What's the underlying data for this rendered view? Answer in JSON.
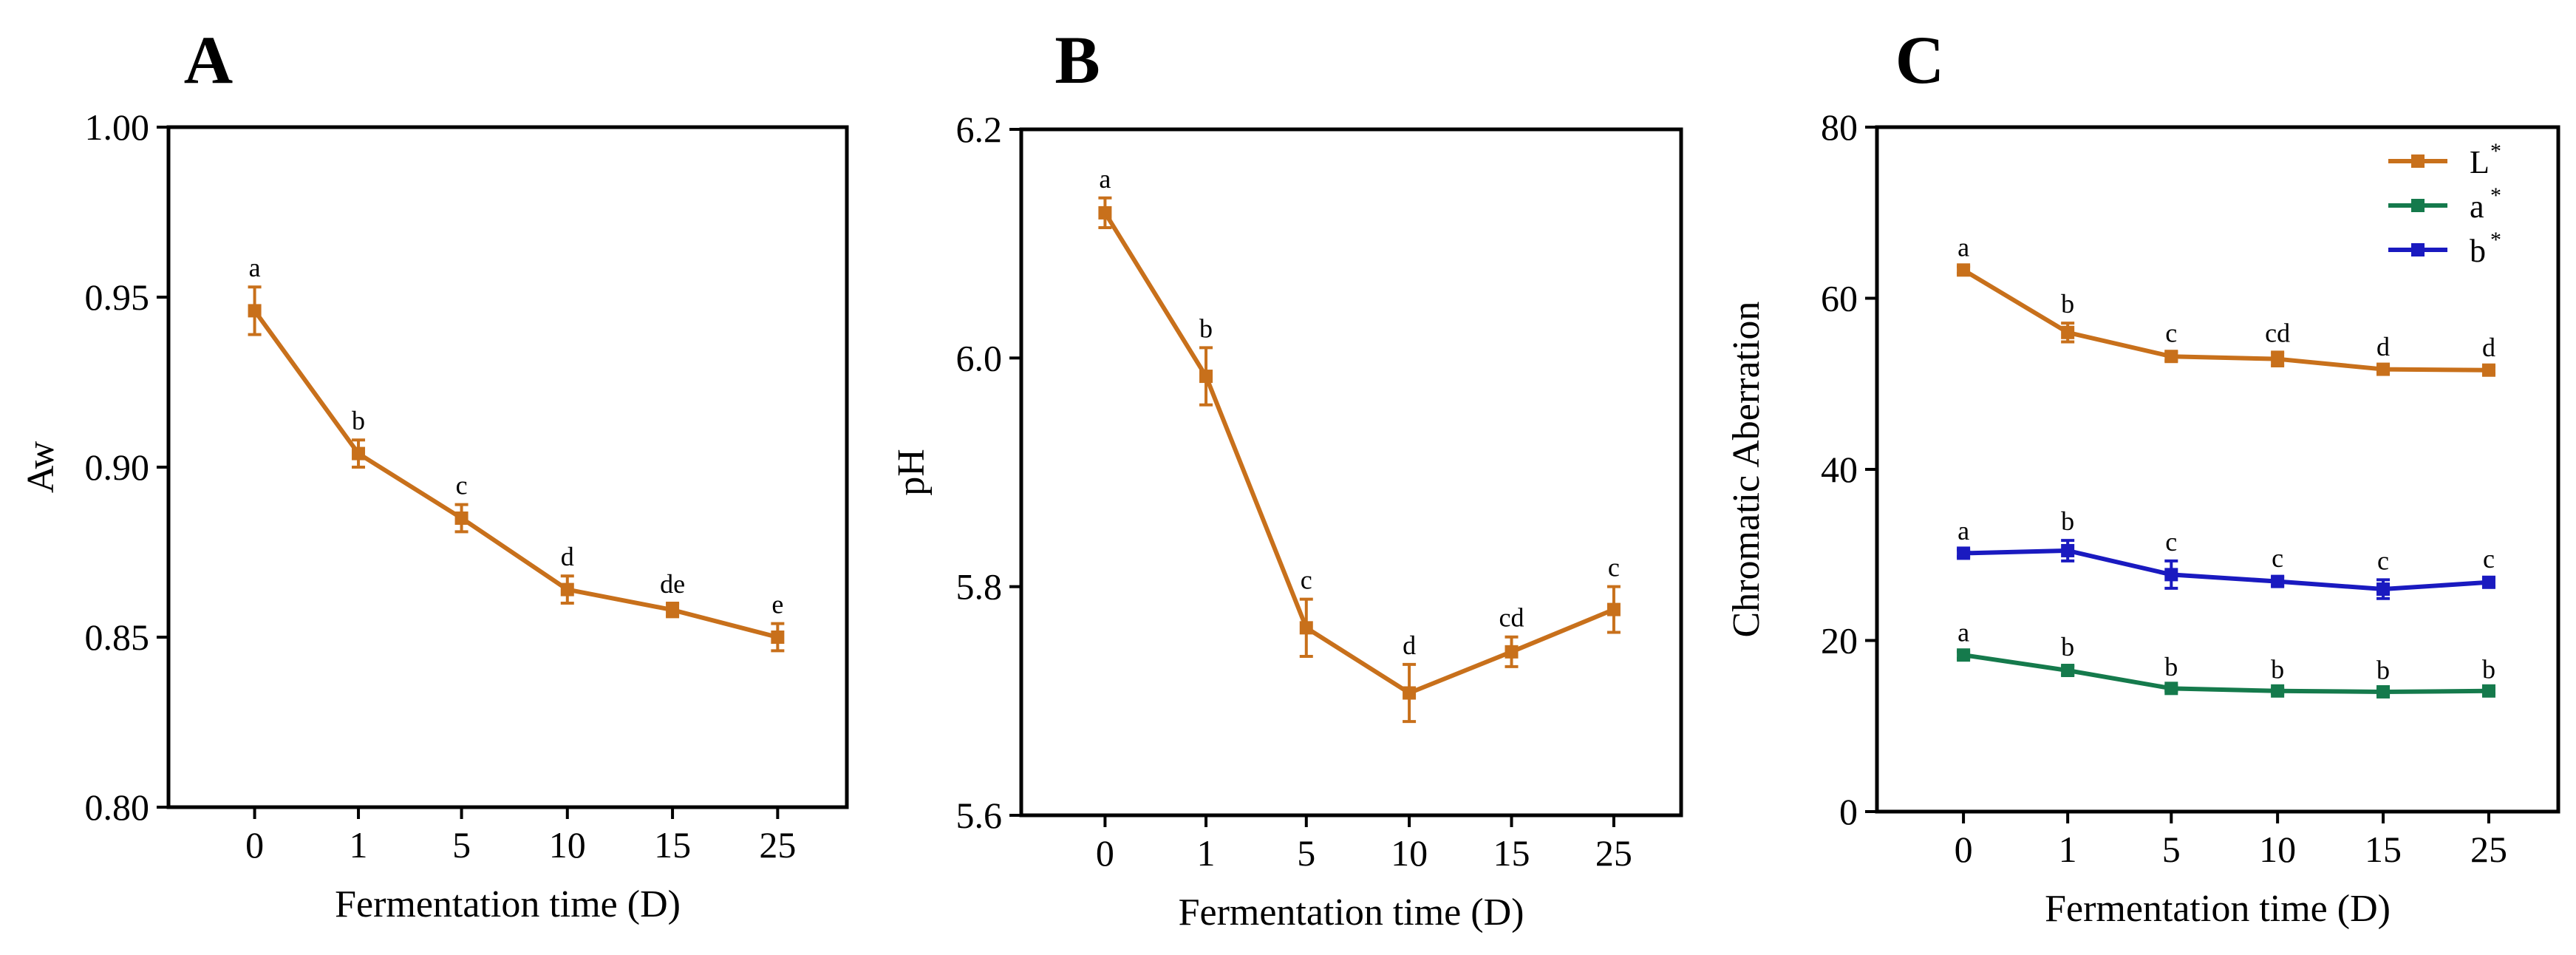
{
  "panels": [
    "A",
    "B",
    "C"
  ],
  "colors": {
    "L": "#c8701b",
    "a": "#157a4c",
    "b": "#1a1ac0",
    "orange": "#c8701b"
  },
  "chart_data": [
    {
      "type": "line",
      "panel": "A",
      "categories": [
        "0",
        "1",
        "5",
        "10",
        "15",
        "25"
      ],
      "xlabel": "Fermentation time (D)",
      "ylabel": "Aw",
      "ylim": [
        0.8,
        1.0
      ],
      "yticks": [
        0.8,
        0.85,
        0.9,
        0.95,
        1.0
      ],
      "ytick_labels": [
        "0.80",
        "0.85",
        "0.90",
        "0.95",
        "1.00"
      ],
      "series": [
        {
          "name": "Aw",
          "color": "#c8701b",
          "values": [
            0.946,
            0.904,
            0.885,
            0.864,
            0.858,
            0.85
          ],
          "errors": [
            0.007,
            0.004,
            0.004,
            0.004,
            0.002,
            0.004
          ],
          "labels": [
            "a",
            "b",
            "c",
            "d",
            "de",
            "e"
          ]
        }
      ]
    },
    {
      "type": "line",
      "panel": "B",
      "categories": [
        "0",
        "1",
        "5",
        "10",
        "15",
        "25"
      ],
      "xlabel": "Fermentation time (D)",
      "ylabel": "pH",
      "ylim": [
        5.6,
        6.2
      ],
      "yticks": [
        5.6,
        5.8,
        6.0,
        6.2
      ],
      "ytick_labels": [
        "5.6",
        "5.8",
        "6.0",
        "6.2"
      ],
      "series": [
        {
          "name": "pH",
          "color": "#c8701b",
          "values": [
            6.127,
            5.984,
            5.764,
            5.707,
            5.743,
            5.78
          ],
          "errors": [
            0.013,
            0.025,
            0.025,
            0.025,
            0.013,
            0.02
          ],
          "labels": [
            "a",
            "b",
            "c",
            "d",
            "cd",
            "c"
          ]
        }
      ]
    },
    {
      "type": "line",
      "panel": "C",
      "categories": [
        "0",
        "1",
        "5",
        "10",
        "15",
        "25"
      ],
      "xlabel": "Fermentation time (D)",
      "ylabel": "Chromatic Aberration",
      "ylim": [
        0,
        80
      ],
      "yticks": [
        0,
        20,
        40,
        60,
        80
      ],
      "ytick_labels": [
        "0",
        "20",
        "40",
        "60",
        "80"
      ],
      "legend": "top-right",
      "series": [
        {
          "name": "L",
          "sup": "*",
          "color": "#c8701b",
          "values": [
            63.3,
            56.0,
            53.2,
            52.9,
            51.7,
            51.6
          ],
          "errors": [
            0.4,
            1.1,
            0.5,
            0.8,
            0.4,
            0.4
          ],
          "labels": [
            "a",
            "b",
            "c",
            "cd",
            "d",
            "d"
          ]
        },
        {
          "name": "a",
          "sup": "*",
          "color": "#157a4c",
          "values": [
            18.3,
            16.5,
            14.4,
            14.1,
            14.0,
            14.1
          ],
          "errors": [
            0.4,
            0.5,
            0.3,
            0.3,
            0.3,
            0.3
          ],
          "labels": [
            "a",
            "b",
            "b",
            "b",
            "b",
            "b"
          ]
        },
        {
          "name": "b",
          "sup": "*",
          "color": "#1a1ac0",
          "values": [
            30.2,
            30.5,
            27.7,
            26.9,
            26.0,
            26.8
          ],
          "errors": [
            0.4,
            1.2,
            1.6,
            0.5,
            1.1,
            0.5
          ],
          "labels": [
            "a",
            "b",
            "c",
            "c",
            "c",
            "c"
          ]
        }
      ]
    }
  ]
}
